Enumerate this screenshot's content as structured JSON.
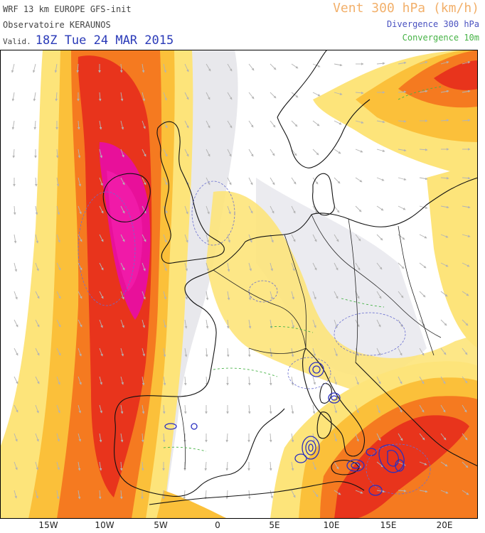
{
  "header": {
    "model_line": "WRF 13 km EUROPE  GFS-init",
    "org_line": "Observatoire KERAUNOS",
    "valid_label": "Valid.",
    "valid_time": "18Z Tue 24 MAR 2015"
  },
  "legend": {
    "title": "Vent 300 hPa (km/h)",
    "divergence": "Divergence 300 hPa",
    "convergence": "Convergence 10m"
  },
  "axis": {
    "x_ticks": [
      "15W",
      "10W",
      "5W",
      "0",
      "5E",
      "10E",
      "15E",
      "20E"
    ]
  },
  "colors": {
    "vent_title": "#f2b06b",
    "divergence": "#4a52c0",
    "convergence": "#47b347",
    "jet_magenta": "#e8109a",
    "jet_red": "#e8341c",
    "jet_orange": "#f57a20",
    "jet_light": "#fde47a"
  },
  "map": {
    "projection": "lat-lon",
    "layers": [
      "wind-speed-fill",
      "wind-arrows",
      "coastlines",
      "country-borders",
      "divergence-contours",
      "convergence-contours"
    ]
  }
}
